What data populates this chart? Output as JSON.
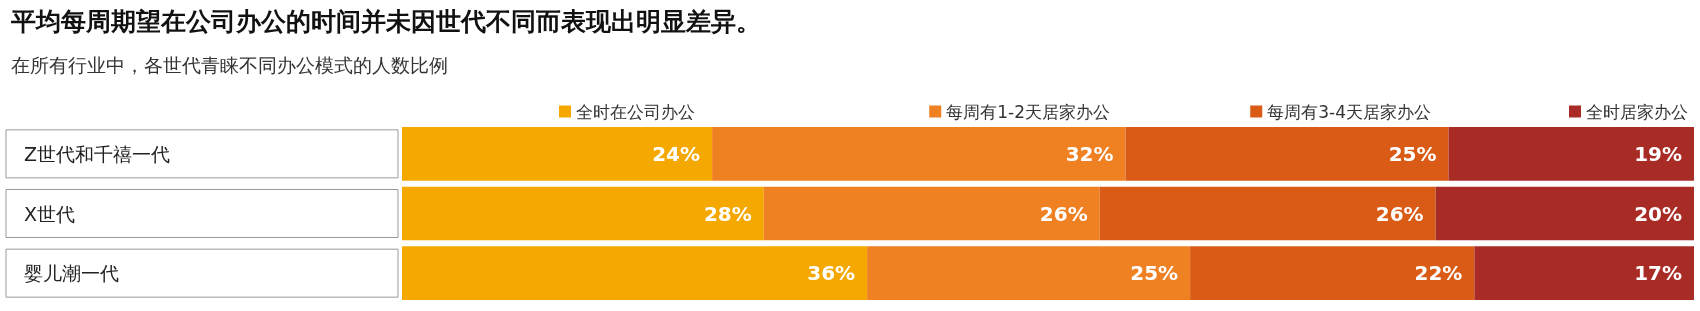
{
  "chart_data": {
    "type": "bar",
    "orientation": "horizontal",
    "stacked": true,
    "tick_labels": "y",
    "title": "平均每周期望在公司办公的时间并未因世代不同而表现出明显差异。",
    "subtitle": "在所有行业中，各世代青睐不同办公模式的人数比例",
    "categories": [
      "Z世代和千禧一代",
      "X世代",
      "婴儿潮一代"
    ],
    "legend": "top",
    "series": [
      {
        "name": "全时在公司办公",
        "color": "#f5a800",
        "values": [
          24,
          28,
          36
        ],
        "value_labels": [
          "24%",
          "28%",
          "36%"
        ]
      },
      {
        "name": "每周有1-2天居家办公",
        "color": "#f08122",
        "values": [
          32,
          26,
          25
        ],
        "value_labels": [
          "32%",
          "26%",
          "25%"
        ]
      },
      {
        "name": "每周有3-4天居家办公",
        "color": "#d95b16",
        "values": [
          25,
          26,
          22
        ],
        "value_labels": [
          "25%",
          "26%",
          "22%"
        ]
      },
      {
        "name": "全时居家办公",
        "color": "#a92b26",
        "values": [
          19,
          20,
          17
        ],
        "value_labels": [
          "19%",
          "20%",
          "17%"
        ]
      }
    ]
  }
}
